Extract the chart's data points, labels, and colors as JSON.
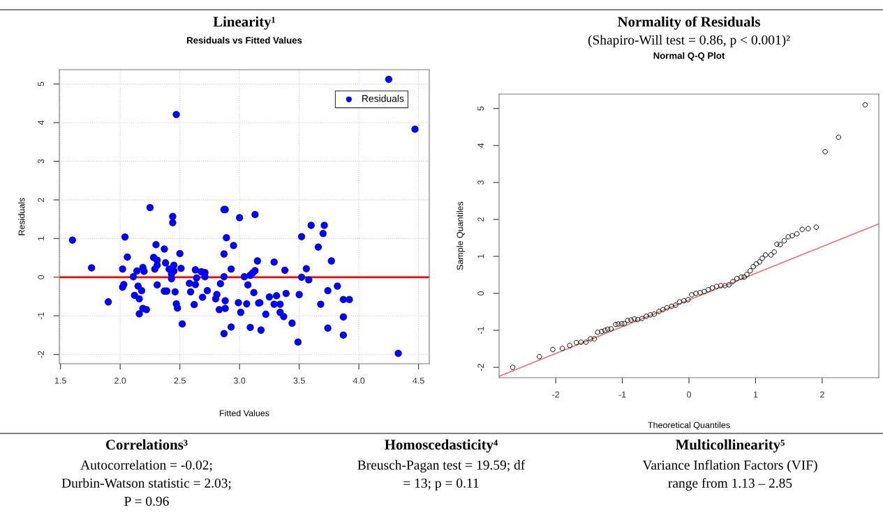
{
  "chart_data": [
    {
      "type": "scatter",
      "title": "Linearity¹",
      "subtitle": "Residuals vs Fitted Values",
      "xlabel": "Fitted Values",
      "ylabel": "Residuals",
      "xlim": [
        1.49,
        4.59
      ],
      "ylim": [
        -2.24,
        5.37
      ],
      "xticks": [
        1.5,
        {
          "value": 2,
          "label": "2.0"
        },
        2.5,
        {
          "value": 3,
          "label": "3.0"
        },
        3.5,
        {
          "value": 4,
          "label": "4.0"
        },
        4.5
      ],
      "yticks": [
        -2,
        -1,
        0,
        1,
        2,
        3,
        4,
        5
      ],
      "grid": true,
      "legend": "top right",
      "ref_lines": [
        {
          "axis": "y",
          "value": 0,
          "color": "#ff0000"
        }
      ],
      "series": [
        {
          "name": "Residuals",
          "color": "#0000ff",
          "marker": "circle",
          "x": [
            1.6,
            1.76,
            1.9,
            2.04,
            2.02,
            2.03,
            2.02,
            2.06,
            2.11,
            2.12,
            2.14,
            2.15,
            2.16,
            2.16,
            2.18,
            2.19,
            2.2,
            2.19,
            2.22,
            2.25,
            2.28,
            2.3,
            2.31,
            2.31,
            2.29,
            2.31,
            2.37,
            2.38,
            2.41,
            2.37,
            2.39,
            2.44,
            2.44,
            2.45,
            2.45,
            2.43,
            2.43,
            2.46,
            2.47,
            2.5,
            2.51,
            2.47,
            2.48,
            2.52,
            2.58,
            2.59,
            2.63,
            2.64,
            2.63,
            2.62,
            2.68,
            2.71,
            2.71,
            2.73,
            2.69,
            2.81,
            2.8,
            2.83,
            2.84,
            2.87,
            2.88,
            2.89,
            2.87,
            2.93,
            2.87,
            2.88,
            2.88,
            2.87,
            2.93,
            2.95,
            3.0,
            2.99,
            3.01,
            3.04,
            3.07,
            3.09,
            3.11,
            3.13,
            3.13,
            3.15,
            3.12,
            3.06,
            3.16,
            3.17,
            3.09,
            3.18,
            3.22,
            3.25,
            3.29,
            3.29,
            3.31,
            3.34,
            3.34,
            3.37,
            3.38,
            3.39,
            3.44,
            3.49,
            3.5,
            3.52,
            3.52,
            3.56,
            3.58,
            3.6,
            3.66,
            3.7,
            3.71,
            3.68,
            3.74,
            3.74,
            3.77,
            3.82,
            3.87,
            3.92,
            3.87,
            3.87,
            4.25,
            4.47,
            4.33
          ],
          "values": [
            0.96,
            0.24,
            -0.64,
            1.04,
            0.21,
            -0.19,
            -0.26,
            0.52,
            0.01,
            -0.47,
            0.16,
            -0.23,
            -0.56,
            -0.95,
            -0.35,
            0.25,
            0.15,
            -0.81,
            -0.84,
            1.8,
            0.51,
            0.84,
            0.44,
            0.31,
            0.21,
            -0.2,
            0.73,
            0.37,
            0.21,
            -0.36,
            -0.36,
            1.57,
            1.41,
            0.31,
            0.16,
            -0.04,
            0.08,
            -0.38,
            4.21,
            0.61,
            0.23,
            -0.69,
            -0.8,
            -1.21,
            -0.16,
            -0.38,
            0.19,
            -0.02,
            -0.19,
            -0.71,
            0.14,
            0.12,
            0.01,
            -0.35,
            -0.52,
            -0.45,
            -0.56,
            -0.84,
            -0.17,
            1.75,
            1.75,
            1.02,
            0.6,
            0.21,
            0.01,
            -0.61,
            -0.81,
            -1.46,
            -1.29,
            0.82,
            1.54,
            -0.66,
            -0.91,
            0.01,
            -0.2,
            0.05,
            0.11,
            0.17,
            1.62,
            0.42,
            -0.4,
            -0.69,
            -0.67,
            -0.66,
            -1.3,
            -1.37,
            -0.96,
            -0.51,
            0.39,
            -0.7,
            -0.48,
            -0.7,
            -0.91,
            -1.02,
            0.18,
            -0.42,
            -1.19,
            -1.68,
            -0.45,
            1.05,
            0.0,
            0.22,
            -0.07,
            1.34,
            0.78,
            1.13,
            1.34,
            -0.7,
            -0.35,
            -1.32,
            0.42,
            -0.23,
            -0.58,
            -0.58,
            -1.03,
            -1.5,
            5.12,
            3.83,
            -1.97
          ]
        }
      ]
    },
    {
      "type": "scatter",
      "title": "Normality of Residuals",
      "subtitle": "(Shapiro-Will test = 0.86, p < 0.001)²",
      "annotations": [
        "Normal Q-Q Plot"
      ],
      "xlabel": "Theoretical Quantiles",
      "ylabel": "Sample Quantiles",
      "xlim": [
        -2.85,
        2.85
      ],
      "ylim": [
        -2.28,
        5.39
      ],
      "xticks": [
        -2,
        -1,
        0,
        1,
        2
      ],
      "yticks": [
        -2,
        -1,
        0,
        1,
        2,
        3,
        4,
        5
      ],
      "series": [
        {
          "color": "#000000",
          "marker": "circle",
          "x": [
            -2.645,
            -2.245,
            -2.044,
            -1.9,
            -1.79,
            -1.69,
            -1.62,
            -1.545,
            -1.48,
            -1.42,
            -1.37,
            -1.31,
            -1.26,
            -1.22,
            -1.17,
            -1.1,
            -1.06,
            -1.01,
            -0.97,
            -0.92,
            -0.87,
            -0.82,
            -0.77,
            -0.705,
            -0.64,
            -0.58,
            -0.52,
            -0.45,
            -0.39,
            -0.33,
            -0.26,
            -0.2,
            -0.14,
            -0.076,
            -0.013,
            0.042,
            0.105,
            0.168,
            0.23,
            0.29,
            0.35,
            0.415,
            0.48,
            0.54,
            0.6,
            0.66,
            0.72,
            0.785,
            0.83,
            0.87,
            0.92,
            0.965,
            1.01,
            1.06,
            1.1,
            1.15,
            1.23,
            1.28,
            1.32,
            1.37,
            1.43,
            1.49,
            1.55,
            1.62,
            1.7,
            1.79,
            1.91,
            2.044,
            2.245,
            2.645
          ],
          "values": [
            -2.0,
            -1.71,
            -1.52,
            -1.49,
            -1.41,
            -1.33,
            -1.32,
            -1.32,
            -1.23,
            -1.23,
            -1.05,
            -1.03,
            -1.0,
            -0.97,
            -0.96,
            -0.84,
            -0.83,
            -0.82,
            -0.82,
            -0.73,
            -0.72,
            -0.69,
            -0.71,
            -0.68,
            -0.62,
            -0.58,
            -0.56,
            -0.49,
            -0.44,
            -0.39,
            -0.35,
            -0.32,
            -0.23,
            -0.2,
            -0.17,
            -0.04,
            0.0,
            0.02,
            0.05,
            0.1,
            0.15,
            0.19,
            0.21,
            0.21,
            0.23,
            0.32,
            0.4,
            0.44,
            0.44,
            0.51,
            0.61,
            0.72,
            0.8,
            0.85,
            0.95,
            1.04,
            1.04,
            1.12,
            1.33,
            1.32,
            1.42,
            1.53,
            1.56,
            1.61,
            1.73,
            1.75,
            1.79,
            3.83,
            4.22,
            5.1
          ]
        },
        {
          "type": "line",
          "color": "#ff5a5a",
          "x": [
            -2.85,
            2.85
          ],
          "values": [
            -2.24,
            1.88
          ]
        }
      ]
    },
    {
      "type": "other",
      "title": "Correlations³",
      "annotations": [
        "Autocorrelation = -0.02;",
        "Durbin-Watson statistic = 2.03;",
        "P = 0.96"
      ]
    },
    {
      "type": "other",
      "title": "Homoscedasticity⁴",
      "annotations": [
        "Breusch-Pagan test = 19.59; df",
        "= 13; p = 0.11"
      ]
    },
    {
      "type": "other",
      "title": "Multicollinearity⁵",
      "annotations": [
        "Variance Inflation Factors (VIF)",
        "range from 1.13 – 2.85"
      ]
    }
  ]
}
